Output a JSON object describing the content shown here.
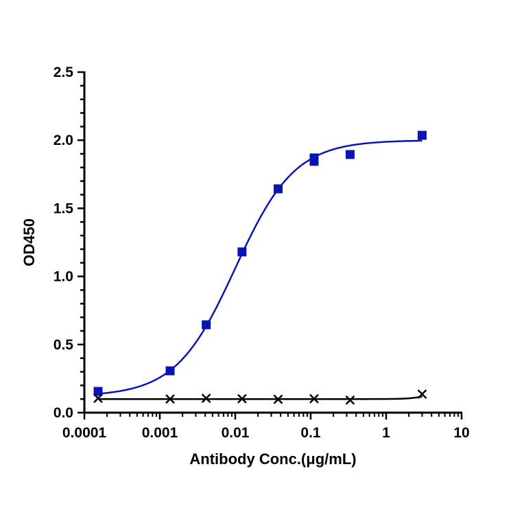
{
  "chart_data": {
    "type": "scatter",
    "title": "",
    "xlabel": "Antibody Conc.(μg/mL)",
    "ylabel": "OD450",
    "xscale": "log",
    "xlim": [
      0.0001,
      10
    ],
    "ylim": [
      0,
      2.5
    ],
    "xticks": [
      "0.0001",
      "0.001",
      "0.01",
      "0.1",
      "1",
      "10"
    ],
    "yticks": [
      "0.0",
      "0.5",
      "1.0",
      "1.5",
      "2.0",
      "2.5"
    ],
    "grid": false,
    "legend": "none",
    "series": [
      {
        "marker": "square",
        "color": "#0a14b4",
        "fit": "sigmoidal",
        "points": [
          [
            0.000152,
            0.156
          ],
          [
            0.00137,
            0.307
          ],
          [
            0.00412,
            0.645
          ],
          [
            0.0123,
            1.18
          ],
          [
            0.037,
            1.643
          ],
          [
            0.111,
            1.87
          ],
          [
            0.111,
            1.845
          ],
          [
            0.333,
            1.895
          ],
          [
            3,
            2.036
          ]
        ]
      },
      {
        "marker": "x",
        "color": "#000000",
        "fit": "flat",
        "points": [
          [
            0.000152,
            0.105
          ],
          [
            0.00137,
            0.1
          ],
          [
            0.00412,
            0.105
          ],
          [
            0.0123,
            0.102
          ],
          [
            0.037,
            0.098
          ],
          [
            0.111,
            0.102
          ],
          [
            0.333,
            0.092
          ],
          [
            3,
            0.136
          ]
        ]
      }
    ]
  }
}
